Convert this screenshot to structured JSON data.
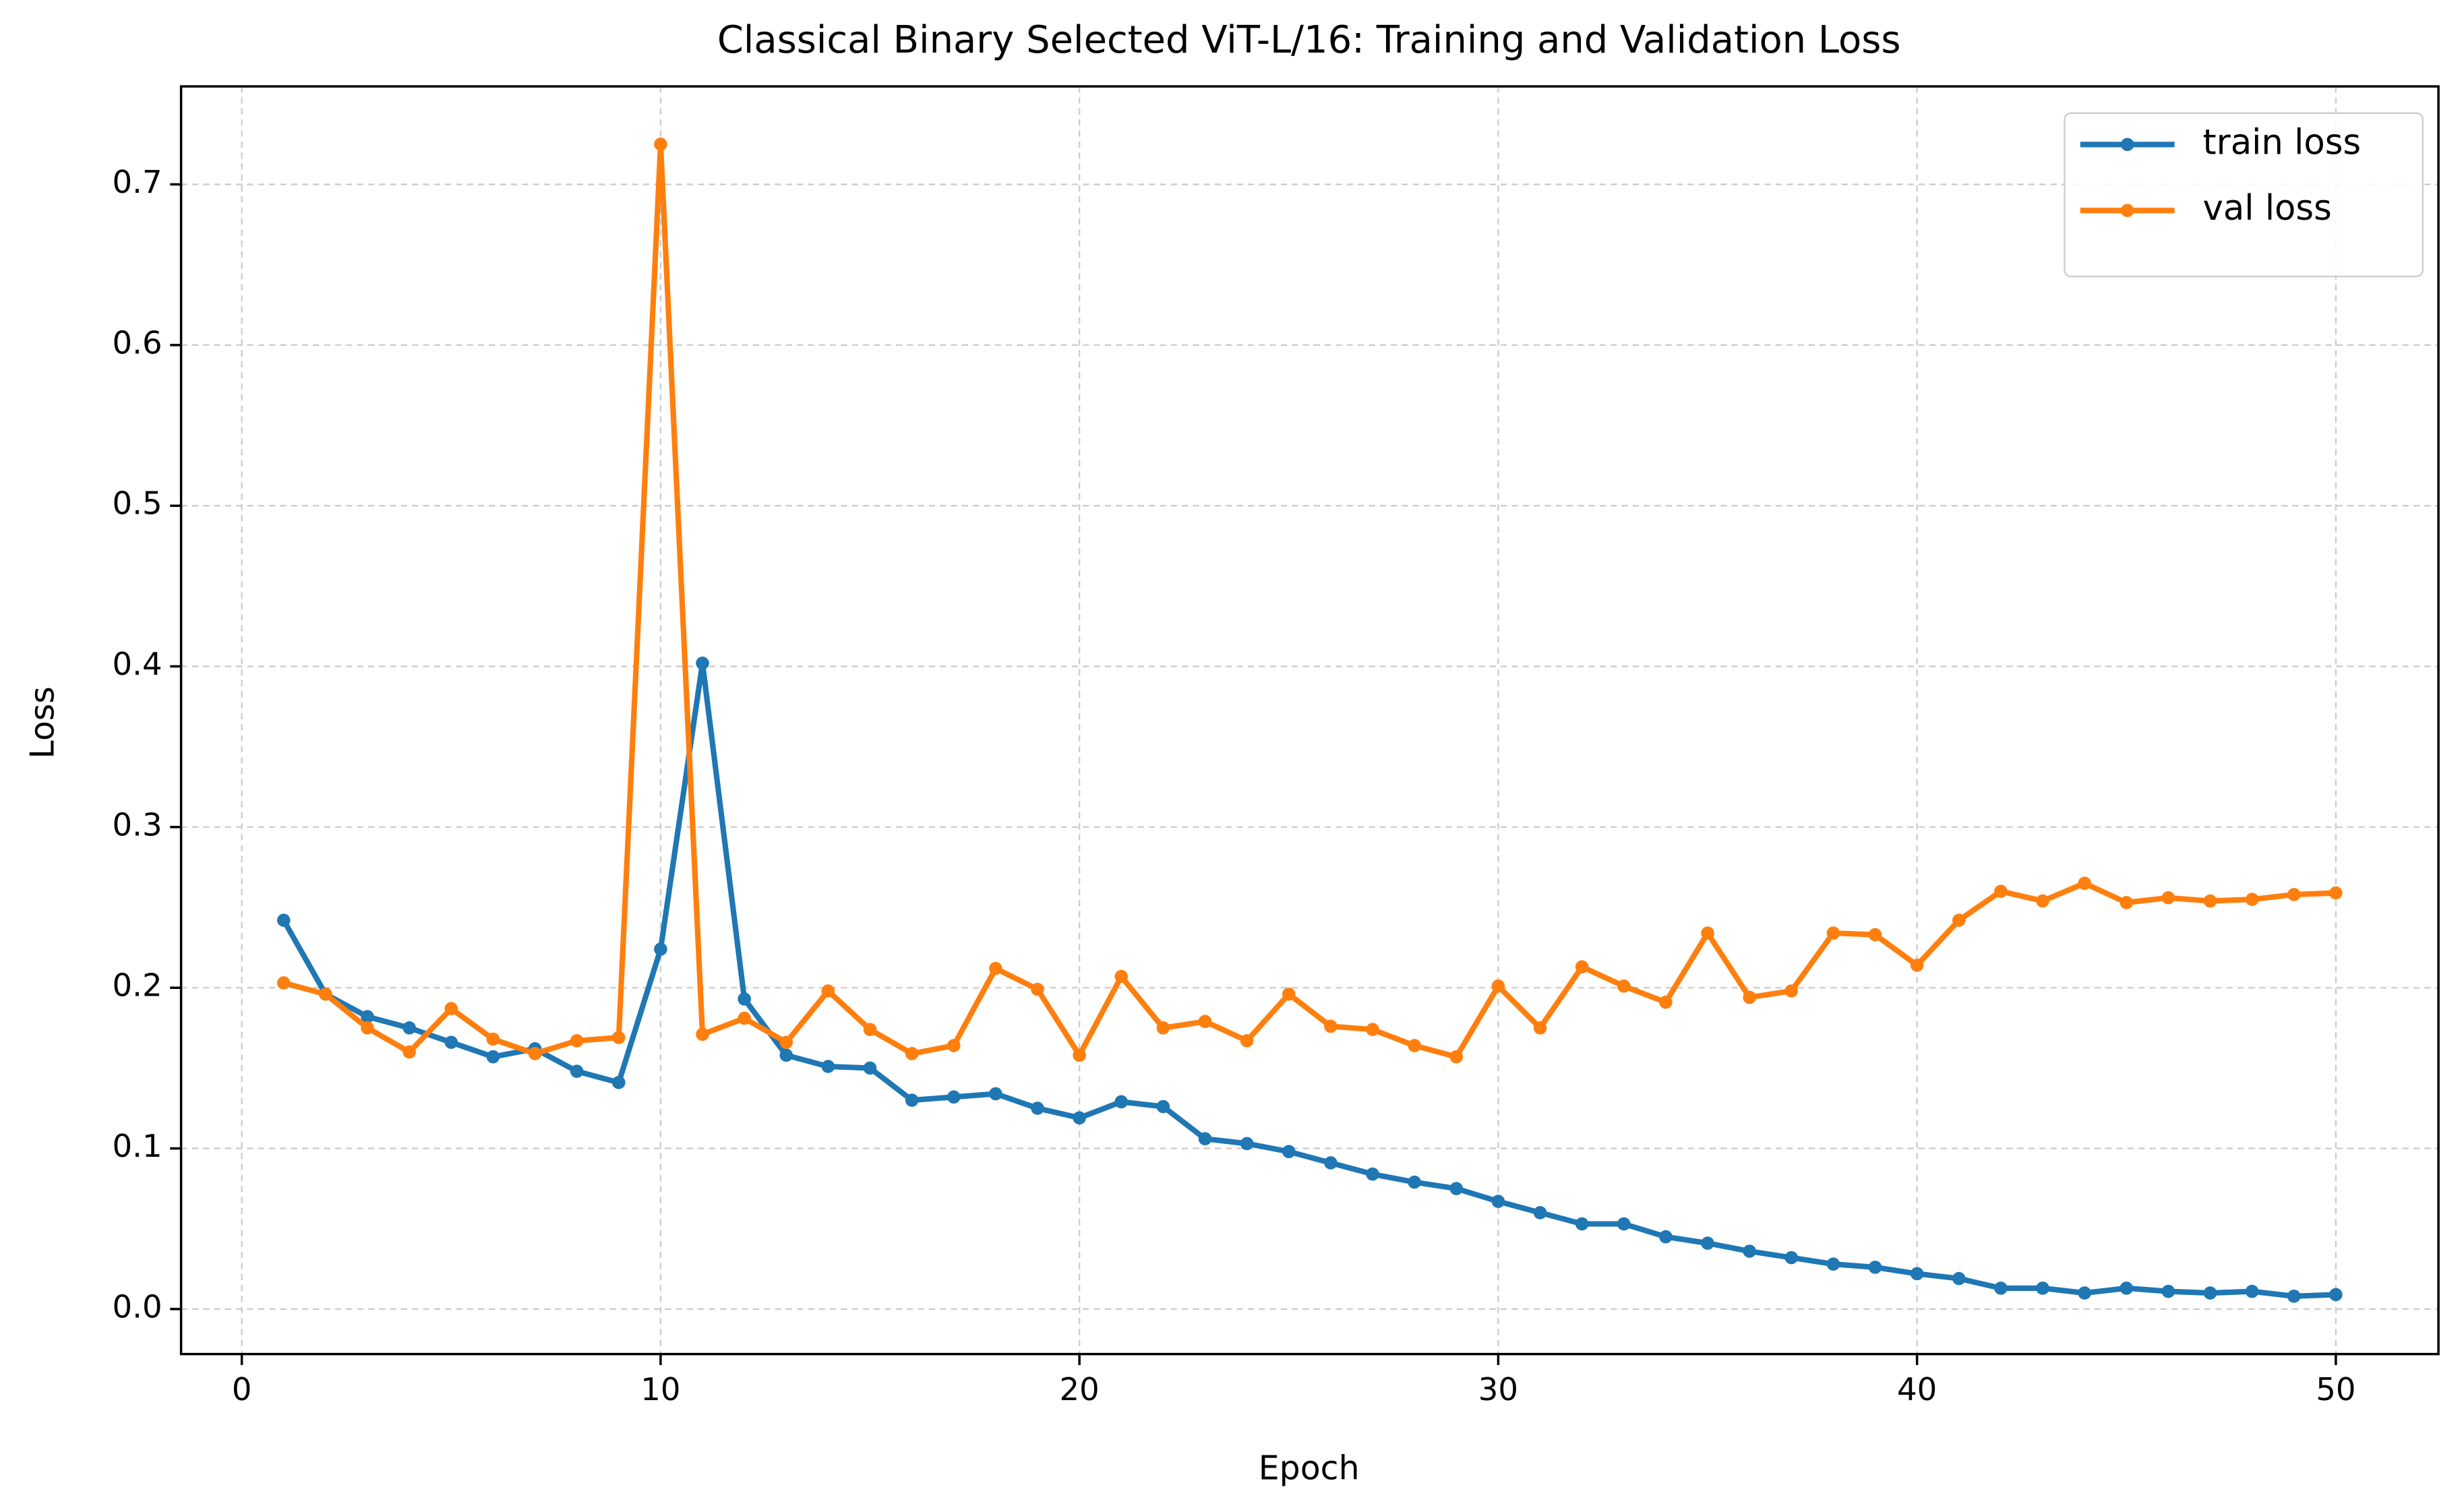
{
  "chart_data": {
    "type": "line",
    "title": "Classical Binary Selected ViT-L/16: Training and Validation Loss",
    "x_label": "Epoch",
    "y_label": "Loss",
    "x": [
      1,
      2,
      3,
      4,
      5,
      6,
      7,
      8,
      9,
      10,
      11,
      12,
      13,
      14,
      15,
      16,
      17,
      18,
      19,
      20,
      21,
      22,
      23,
      24,
      25,
      26,
      27,
      28,
      29,
      30,
      31,
      32,
      33,
      34,
      35,
      36,
      37,
      38,
      39,
      40,
      41,
      42,
      43,
      44,
      45,
      46,
      47,
      48,
      49,
      50
    ],
    "series": [
      {
        "name": "train loss",
        "color": "#1f77b4",
        "values": [
          0.242,
          0.196,
          0.182,
          0.175,
          0.166,
          0.157,
          0.162,
          0.148,
          0.141,
          0.224,
          0.402,
          0.193,
          0.158,
          0.151,
          0.15,
          0.13,
          0.132,
          0.134,
          0.125,
          0.119,
          0.129,
          0.126,
          0.106,
          0.103,
          0.098,
          0.091,
          0.084,
          0.079,
          0.075,
          0.067,
          0.06,
          0.053,
          0.053,
          0.045,
          0.041,
          0.036,
          0.032,
          0.028,
          0.026,
          0.022,
          0.019,
          0.013,
          0.013,
          0.01,
          0.013,
          0.011,
          0.01,
          0.011,
          0.008,
          0.009
        ]
      },
      {
        "name": "val loss",
        "color": "#ff7f0e",
        "values": [
          0.203,
          0.196,
          0.175,
          0.16,
          0.187,
          0.168,
          0.159,
          0.167,
          0.169,
          0.725,
          0.171,
          0.181,
          0.166,
          0.198,
          0.174,
          0.159,
          0.164,
          0.212,
          0.199,
          0.158,
          0.207,
          0.175,
          0.179,
          0.167,
          0.196,
          0.176,
          0.174,
          0.164,
          0.157,
          0.201,
          0.175,
          0.213,
          0.201,
          0.191,
          0.234,
          0.194,
          0.198,
          0.234,
          0.233,
          0.214,
          0.242,
          0.26,
          0.254,
          0.265,
          0.253,
          0.256,
          0.254,
          0.255,
          0.258,
          0.259
        ]
      }
    ],
    "xlim": [
      -1.45,
      52.45
    ],
    "xticks": [
      0,
      10,
      20,
      30,
      40,
      50
    ],
    "ylim": [
      -0.028,
      0.761
    ],
    "yticks": [
      {
        "value": 0,
        "label": "0.0"
      },
      0.1,
      0.2,
      0.3,
      0.4,
      0.5,
      0.6,
      0.7
    ],
    "grid": true,
    "legend": "upper right"
  }
}
